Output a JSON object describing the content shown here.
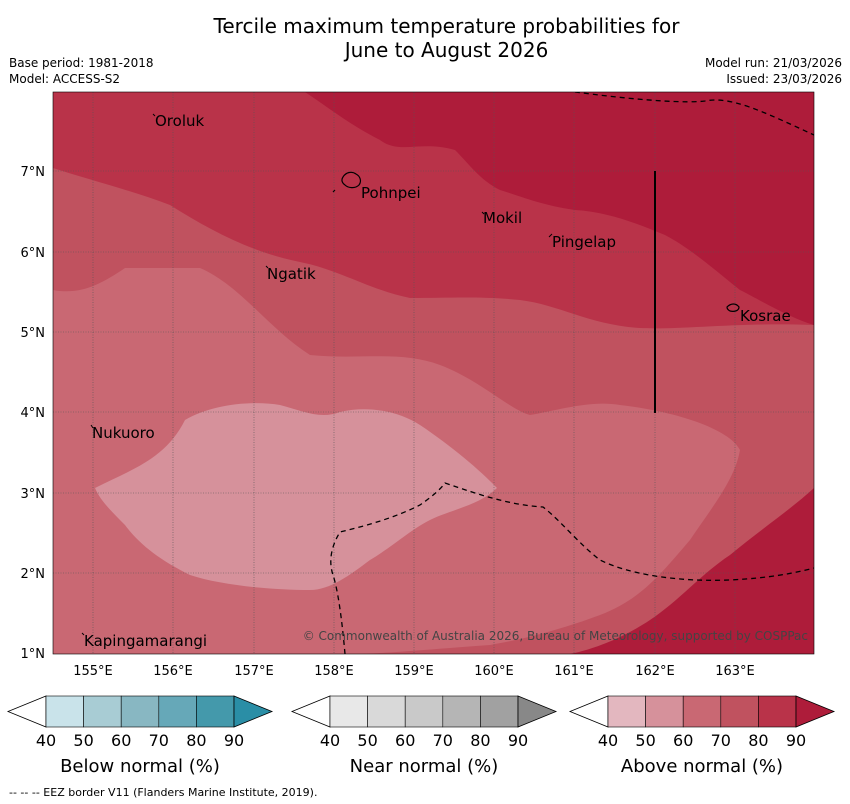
{
  "title": {
    "line1": "Tercile maximum temperature probabilities for",
    "line2": "June to August 2026"
  },
  "meta": {
    "base_period": "Base period: 1981-2018",
    "model": "Model: ACCESS-S2",
    "model_run": "Model run: 21/03/2026",
    "issued": "Issued: 23/03/2026"
  },
  "map": {
    "lon_labels": [
      "155°E",
      "156°E",
      "157°E",
      "158°E",
      "159°E",
      "160°E",
      "161°E",
      "162°E",
      "163°E"
    ],
    "lat_labels": [
      "7°N",
      "6°N",
      "5°N",
      "4°N",
      "3°N",
      "2°N",
      "1°N"
    ],
    "places": {
      "oroluk": "Oroluk",
      "pohnpei": "Pohnpei",
      "mokil": "Mokil",
      "pingelap": "Pingelap",
      "ngatik": "Ngatik",
      "kosrae": "Kosrae",
      "nukuoro": "Nukuoro",
      "kapingamarangi": "Kapingamarangi"
    },
    "credit": "© Commonwealth of Australia 2026, Bureau of Meteorology, supported by COSPPac",
    "colors": {
      "above_40": "#e3b7bf",
      "above_50": "#d6919b",
      "above_60": "#c96873",
      "above_70": "#c0525f",
      "above_80": "#b93349",
      "above_90": "#ae1c3a"
    }
  },
  "legend": {
    "below": {
      "title": "Below normal (%)",
      "ticks": [
        "40",
        "50",
        "60",
        "70",
        "80",
        "90"
      ],
      "colors": [
        "#ffffff",
        "#c9e3ea",
        "#a8ccd4",
        "#88b7c2",
        "#66a8b8",
        "#4499ab",
        "#2a8ea6"
      ]
    },
    "near": {
      "title": "Near normal (%)",
      "ticks": [
        "40",
        "50",
        "60",
        "70",
        "80",
        "90"
      ],
      "colors": [
        "#ffffff",
        "#e8e8e8",
        "#d9d9d9",
        "#c9c9c9",
        "#b5b5b5",
        "#a1a1a1",
        "#888888"
      ]
    },
    "above": {
      "title": "Above normal (%)",
      "ticks": [
        "40",
        "50",
        "60",
        "70",
        "80",
        "90"
      ],
      "colors": [
        "#ffffff",
        "#e3b7bf",
        "#d6919b",
        "#c96873",
        "#c0525f",
        "#b93349",
        "#ae1c3a"
      ]
    }
  },
  "footnote": "--  --  -- EEZ border V11 (Flanders Marine Institute, 2019)."
}
